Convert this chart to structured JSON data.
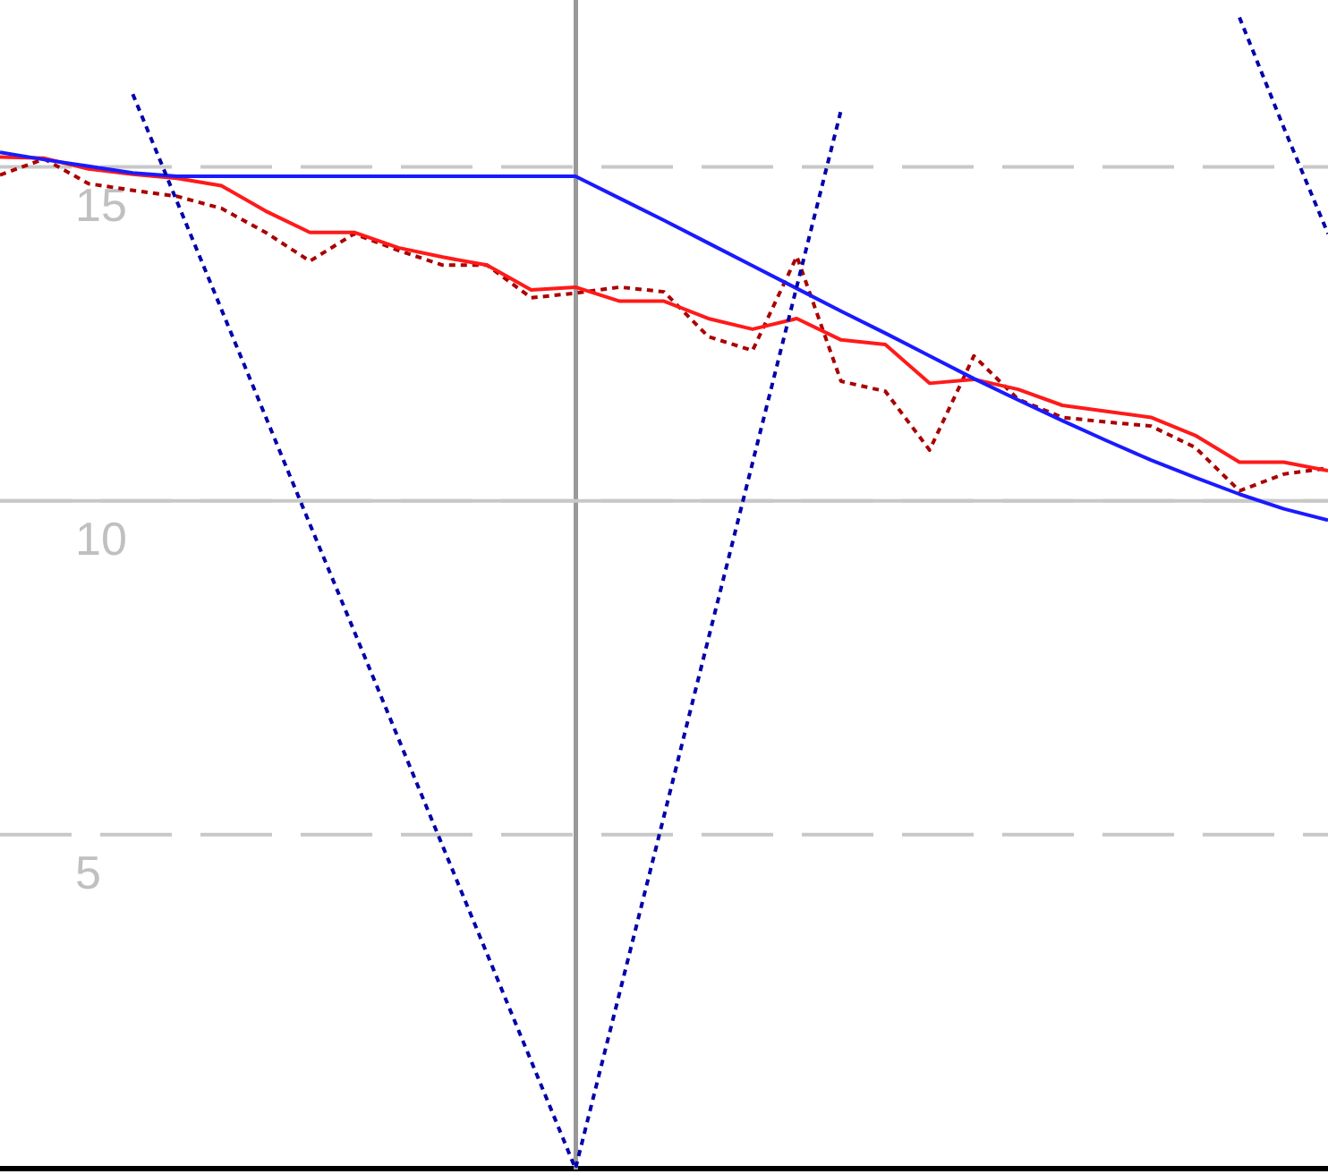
{
  "chart_data": {
    "type": "line",
    "categories": [
      null,
      null,
      null,
      null,
      null,
      null,
      null,
      null,
      null,
      null,
      null,
      null,
      null,
      null,
      null,
      null,
      null,
      null,
      null,
      null,
      null,
      null,
      null,
      null,
      null,
      null,
      null,
      null,
      null,
      null,
      null
    ],
    "series": [
      {
        "color": "#aa0000",
        "line_style": "dotted",
        "values": [
          14.88,
          15.12,
          14.75,
          14.65,
          14.56,
          14.38,
          14.02,
          13.59,
          14.0,
          13.75,
          13.53,
          13.53,
          13.04,
          13.11,
          13.2,
          13.13,
          12.46,
          12.25,
          13.66,
          11.79,
          11.64,
          10.76,
          12.17,
          11.52,
          11.25,
          11.18,
          11.12,
          10.8,
          10.15,
          10.4,
          10.49
        ]
      },
      {
        "color": "#ff1a1a",
        "line_style": "solid",
        "values": [
          15.15,
          15.13,
          14.97,
          14.89,
          14.83,
          14.72,
          14.34,
          14.02,
          14.02,
          13.79,
          13.65,
          13.53,
          13.16,
          13.2,
          12.99,
          12.99,
          12.73,
          12.57,
          12.73,
          12.41,
          12.34,
          11.76,
          11.82,
          11.67,
          11.43,
          11.34,
          11.25,
          10.98,
          10.58,
          10.58,
          10.45
        ]
      },
      {
        "color": "#1a1aff",
        "line_style": "solid",
        "values": [
          15.22,
          15.11,
          15.01,
          14.91,
          14.86,
          14.86,
          14.86,
          14.86,
          14.86,
          14.86,
          14.86,
          14.86,
          14.86,
          14.86,
          14.53,
          14.2,
          13.86,
          13.52,
          13.18,
          12.84,
          12.51,
          12.17,
          11.83,
          11.51,
          11.2,
          10.9,
          10.61,
          10.35,
          10.1,
          9.88,
          9.71
        ]
      },
      {
        "color": "#0000aa",
        "line_style": "dotted",
        "values": [
          null,
          null,
          null,
          16.09,
          14.48,
          12.87,
          11.26,
          9.65,
          8.05,
          6.44,
          4.83,
          3.22,
          1.61,
          0,
          2.64,
          5.28,
          7.93,
          10.57,
          13.21,
          15.85,
          null,
          null,
          null,
          null,
          null,
          null,
          null,
          null,
          17.24,
          15.59,
          14.0
        ]
      }
    ],
    "ylim": [
      0,
      17.5
    ],
    "yticks": [
      5,
      10,
      15
    ],
    "grid": "y",
    "tick_labels": "y",
    "ref_lines": [
      {
        "axis": "y",
        "value": 10,
        "color": "#c8c8c8"
      }
    ]
  }
}
